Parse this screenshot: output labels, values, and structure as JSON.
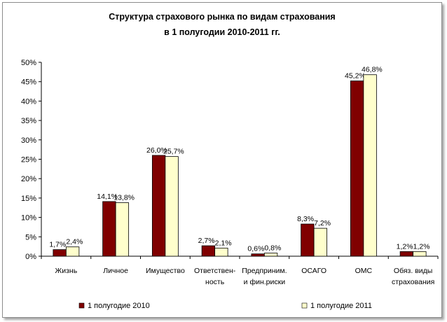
{
  "chart_data": {
    "type": "bar",
    "title": [
      "Структура страхового рынка по видам страхования",
      "в 1 полугодии 2010-2011 гг."
    ],
    "categories": [
      [
        "Жизнь"
      ],
      [
        "Личное"
      ],
      [
        "Имущество"
      ],
      [
        "Ответствен-",
        "ность"
      ],
      [
        "Предприним.",
        "и фин.риски"
      ],
      [
        "ОСАГО"
      ],
      [
        "ОМС"
      ],
      [
        "Обяз. виды",
        "страхования"
      ]
    ],
    "series": [
      {
        "name": "1 полугодие 2010",
        "color": "#800000",
        "values": [
          1.7,
          14.1,
          26.0,
          2.7,
          0.6,
          8.3,
          45.2,
          1.2
        ],
        "labels": [
          "1,7%",
          "14,1%",
          "26,0%",
          "2,7%",
          "0,6%",
          "8,3%",
          "45,2%",
          "1,2%"
        ]
      },
      {
        "name": "1 полугодие 2011",
        "color": "#ffffcc",
        "values": [
          2.4,
          13.8,
          25.7,
          2.1,
          0.8,
          7.2,
          46.8,
          1.2
        ],
        "labels": [
          "2,4%",
          "13,8%",
          "25,7%",
          "2,1%",
          "0,8%",
          "7,2%",
          "46,8%",
          "1,2%"
        ]
      }
    ],
    "ylim": [
      0,
      50
    ],
    "yticks": [
      0,
      5,
      10,
      15,
      20,
      25,
      30,
      35,
      40,
      45,
      50
    ],
    "ytick_labels": [
      "0%",
      "5%",
      "10%",
      "15%",
      "20%",
      "25%",
      "30%",
      "35%",
      "40%",
      "45%",
      "50%"
    ],
    "xlabel": "",
    "ylabel": "",
    "grid": false,
    "legend_position": "bottom"
  }
}
